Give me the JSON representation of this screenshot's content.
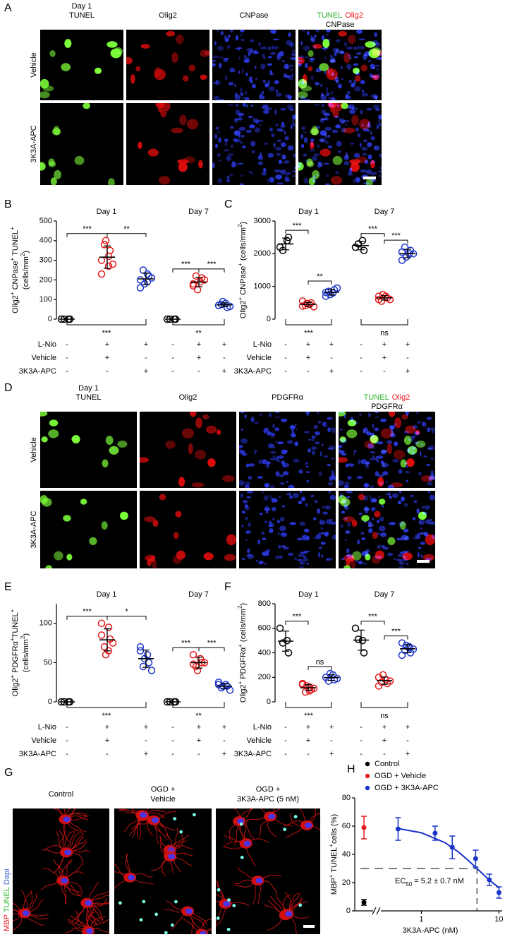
{
  "figure": {
    "letters": [
      "A",
      "B",
      "C",
      "D",
      "E",
      "F",
      "G",
      "H"
    ],
    "A": {
      "day": "Day 1",
      "columns": [
        "TUNEL",
        "Olig2",
        "CNPase"
      ],
      "rows": [
        "Vehicle",
        "3K3A-APC"
      ]
    },
    "D": {
      "day": "Day 1",
      "columns": [
        "TUNEL",
        "Olig2",
        "PDGFRα"
      ],
      "rows": [
        "Vehicle",
        "3K3A-APC"
      ]
    },
    "G": {
      "columns": [
        [
          "Control"
        ],
        [
          "OGD +",
          "Vehicle"
        ],
        [
          "OGD +",
          "3K3A-APC (5 nM)"
        ]
      ],
      "stains": [
        "MBP",
        "TUNEL",
        "Dapi"
      ]
    }
  },
  "chart_data": [
    {
      "type": "dot",
      "ylabel": [
        [
          {
            "t": "Olig2"
          },
          {
            "sup": "+"
          },
          {
            "t": " CNPase"
          },
          {
            "sup": "+"
          },
          {
            "t": " TUNEL"
          },
          {
            "sup": "+"
          }
        ],
        [
          {
            "t": "(cells/mm"
          },
          {
            "sup": "2"
          },
          {
            "t": ")"
          }
        ]
      ],
      "ylim": [
        0,
        500
      ],
      "yticks": [
        0,
        100,
        200,
        300,
        400,
        500
      ],
      "colors": [
        "#000000",
        "#e41a1c",
        "#1a33c8"
      ],
      "groups": [
        {
          "label": "Day 1",
          "top_labels": [
            "***",
            "**"
          ],
          "bottom_label": "***",
          "series": [
            {
              "values": [
                0,
                0,
                0,
                0
              ],
              "mean": 0,
              "sd": 0
            },
            {
              "values": [
                300,
                320,
                350,
                380,
                400,
                280,
                230,
                270
              ],
              "mean": 316,
              "sd": 57
            },
            {
              "values": [
                200,
                190,
                220,
                250,
                180,
                210,
                160,
                230
              ],
              "mean": 205,
              "sd": 29
            }
          ]
        },
        {
          "label": "Day 7",
          "top_labels": [
            "***",
            "***"
          ],
          "bottom_label": "**",
          "series": [
            {
              "values": [
                0,
                0,
                0,
                0
              ],
              "mean": 0,
              "sd": 0
            },
            {
              "values": [
                170,
                190,
                210,
                220,
                150,
                200,
                180
              ],
              "mean": 189,
              "sd": 24
            },
            {
              "values": [
                70,
                80,
                60,
                75,
                90,
                65,
                70
              ],
              "mean": 73,
              "sd": 10
            }
          ]
        }
      ],
      "table": {
        "rows": [
          {
            "label": "L-Nio",
            "signs": [
              "-",
              "+",
              "+",
              "-",
              "+",
              "+"
            ]
          },
          {
            "label": "Vehicle",
            "signs": [
              "-",
              "+",
              "-",
              "-",
              "+",
              "-"
            ]
          },
          {
            "label": "3K3A-APC",
            "signs": [
              "-",
              "-",
              "+",
              "-",
              "-",
              "+"
            ]
          }
        ]
      }
    },
    {
      "type": "dot",
      "ylabel": [
        [
          {
            "t": "Olig2"
          },
          {
            "sup": "+"
          },
          {
            "t": " CNPase"
          },
          {
            "sup": "+"
          },
          {
            "t": " (cells/mm"
          },
          {
            "sup": "2"
          },
          {
            "t": ")"
          }
        ]
      ],
      "ylim": [
        0,
        3000
      ],
      "yticks": [
        0,
        1000,
        2000,
        3000
      ],
      "colors": [
        "#000000",
        "#e41a1c",
        "#1a33c8"
      ],
      "groups": [
        {
          "label": "Day 1",
          "top_labels": [
            "***",
            "**"
          ],
          "bottom_label": "***",
          "series": [
            {
              "values": [
                2200,
                2400,
                2500,
                2100
              ],
              "mean": 2300,
              "sd": 180
            },
            {
              "values": [
                400,
                450,
                500,
                420,
                480,
                380,
                550
              ],
              "mean": 454,
              "sd": 58
            },
            {
              "values": [
                700,
                800,
                900,
                850,
                750,
                950,
                820
              ],
              "mean": 824,
              "sd": 86
            }
          ]
        },
        {
          "label": "Day 7",
          "top_labels": [
            "***",
            "***"
          ],
          "bottom_label": "ns",
          "series": [
            {
              "values": [
                2200,
                2400,
                2100,
                2300
              ],
              "mean": 2250,
              "sd": 130
            },
            {
              "values": [
                600,
                700,
                650,
                550,
                750,
                600,
                700
              ],
              "mean": 650,
              "sd": 68
            },
            {
              "values": [
                1800,
                2000,
                2100,
                2200,
                1900,
                2000,
                2050
              ],
              "mean": 2007,
              "sd": 130
            }
          ]
        }
      ],
      "table": {
        "rows": [
          {
            "label": "L-Nio",
            "signs": [
              "-",
              "+",
              "+",
              "-",
              "+",
              "+"
            ]
          },
          {
            "label": "Vehicle",
            "signs": [
              "-",
              "+",
              "-",
              "-",
              "+",
              "-"
            ]
          },
          {
            "label": "3K3A-APC",
            "signs": [
              "-",
              "-",
              "+",
              "-",
              "-",
              "+"
            ]
          }
        ]
      }
    },
    {
      "type": "dot",
      "ylabel": [
        [
          {
            "t": "Olig2"
          },
          {
            "sup": "+"
          },
          {
            "t": " PDGFRα"
          },
          {
            "sup": "+"
          },
          {
            "t": "TUNEL"
          },
          {
            "sup": "+"
          }
        ],
        [
          {
            "t": "(cells/mm"
          },
          {
            "sup": "2"
          },
          {
            "t": ")"
          }
        ]
      ],
      "ylim": [
        0,
        125
      ],
      "yticks": [
        0,
        50,
        100
      ],
      "colors": [
        "#000000",
        "#e41a1c",
        "#1a33c8"
      ],
      "groups": [
        {
          "label": "Day 1",
          "top_labels": [
            "***",
            "*"
          ],
          "bottom_label": "***",
          "series": [
            {
              "values": [
                0,
                0,
                0,
                0
              ],
              "mean": 0,
              "sd": 0
            },
            {
              "values": [
                100,
                95,
                80,
                70,
                60,
                75,
                85,
                65
              ],
              "mean": 79,
              "sd": 14
            },
            {
              "values": [
                70,
                60,
                50,
                45,
                55,
                40,
                65
              ],
              "mean": 55,
              "sd": 11
            }
          ]
        },
        {
          "label": "Day 7",
          "top_labels": [
            "***",
            "***"
          ],
          "bottom_label": "**",
          "series": [
            {
              "values": [
                0,
                0,
                0,
                0
              ],
              "mean": 0,
              "sd": 0
            },
            {
              "values": [
                60,
                55,
                50,
                45,
                40,
                50,
                48
              ],
              "mean": 50,
              "sd": 7
            },
            {
              "values": [
                25,
                22,
                20,
                18,
                20,
                15,
                22
              ],
              "mean": 20,
              "sd": 3
            }
          ]
        }
      ],
      "table": {
        "rows": [
          {
            "label": "L-Nio",
            "signs": [
              "-",
              "+",
              "+",
              "-",
              "+",
              "+"
            ]
          },
          {
            "label": "Vehicle",
            "signs": [
              "-",
              "+",
              "-",
              "-",
              "+",
              "-"
            ]
          },
          {
            "label": "3K3A-APC",
            "signs": [
              "-",
              "-",
              "+",
              "-",
              "-",
              "+"
            ]
          }
        ]
      }
    },
    {
      "type": "dot",
      "ylabel": [
        [
          {
            "t": "Olig2"
          },
          {
            "sup": "+"
          },
          {
            "t": " PDGFRα"
          },
          {
            "sup": "+"
          },
          {
            "t": " (cells/mm"
          },
          {
            "sup": "2"
          },
          {
            "t": ")"
          }
        ]
      ],
      "ylim": [
        0,
        800
      ],
      "yticks": [
        0,
        200,
        400,
        600,
        800
      ],
      "colors": [
        "#000000",
        "#e41a1c",
        "#1a33c8"
      ],
      "groups": [
        {
          "label": "Day 1",
          "top_labels": [
            "***",
            "ns"
          ],
          "bottom_label": "***",
          "series": [
            {
              "values": [
                600,
                500,
                400,
                480
              ],
              "mean": 495,
              "sd": 82
            },
            {
              "values": [
                150,
                120,
                100,
                80,
                130,
                110,
                140,
                90
              ],
              "mean": 115,
              "sd": 25
            },
            {
              "values": [
                200,
                220,
                180,
                170,
                230,
                190
              ],
              "mean": 198,
              "sd": 23
            }
          ]
        },
        {
          "label": "Day 7",
          "top_labels": [
            "***",
            "***"
          ],
          "bottom_label": "ns",
          "series": [
            {
              "values": [
                600,
                500,
                400,
                510
              ],
              "mean": 503,
              "sd": 82
            },
            {
              "values": [
                200,
                180,
                150,
                160,
                220,
                170,
                130
              ],
              "mean": 173,
              "sd": 30
            },
            {
              "values": [
                480,
                450,
                400,
                420,
                460,
                430,
                380,
                440
              ],
              "mean": 433,
              "sd": 32
            }
          ]
        }
      ],
      "table": {
        "rows": [
          {
            "label": "L-Nio",
            "signs": [
              "-",
              "+",
              "+",
              "-",
              "+",
              "+"
            ]
          },
          {
            "label": "Vehicle",
            "signs": [
              "-",
              "+",
              "-",
              "-",
              "+",
              "-"
            ]
          },
          {
            "label": "3K3A-APC",
            "signs": [
              "-",
              "-",
              "+",
              "-",
              "-",
              "+"
            ]
          }
        ]
      }
    },
    {
      "type": "scatter",
      "ylabel": [
        {
          "t": "MBP"
        },
        {
          "sup": "+"
        },
        {
          "t": " TUNEL"
        },
        {
          "sup": "+"
        },
        {
          "t": "cells (%)"
        }
      ],
      "xlabel": "3K3A-APC (nM)",
      "xscale": "log",
      "xlim": [
        0.3,
        11
      ],
      "xticks": [
        1,
        10
      ],
      "ylim": [
        0,
        80
      ],
      "yticks": [
        0,
        20,
        40,
        60,
        80
      ],
      "legend": "upper-left",
      "series": [
        {
          "name": "Control",
          "color": "#000000",
          "values": [
            6
          ],
          "errors": [
            2
          ]
        },
        {
          "name": "OGD + Vehicle",
          "color": "#e41a1c",
          "values": [
            59
          ],
          "errors": [
            8
          ]
        },
        {
          "name": "OGD + 3K3A-APC",
          "color": "#1a33c8",
          "x": [
            0.5,
            1.5,
            2.5,
            5,
            7.5,
            10
          ],
          "values": [
            58,
            55,
            45,
            37,
            22,
            13
          ],
          "errors": [
            8,
            5,
            8,
            6,
            4,
            4
          ]
        }
      ],
      "fit": {
        "x": [
          0.5,
          1,
          2,
          3,
          4,
          5,
          6,
          7,
          8,
          10
        ],
        "values": [
          58.3,
          55.3,
          48.4,
          41.7,
          35.8,
          30.9,
          26.8,
          23.4,
          20.6,
          16.4
        ]
      },
      "reference": {
        "x": 5.2,
        "y": 30
      },
      "annotation": [
        {
          "t": "EC"
        },
        {
          "sub": "50"
        },
        {
          "t": " = 5.2 ± 0.7 nM"
        }
      ]
    }
  ]
}
